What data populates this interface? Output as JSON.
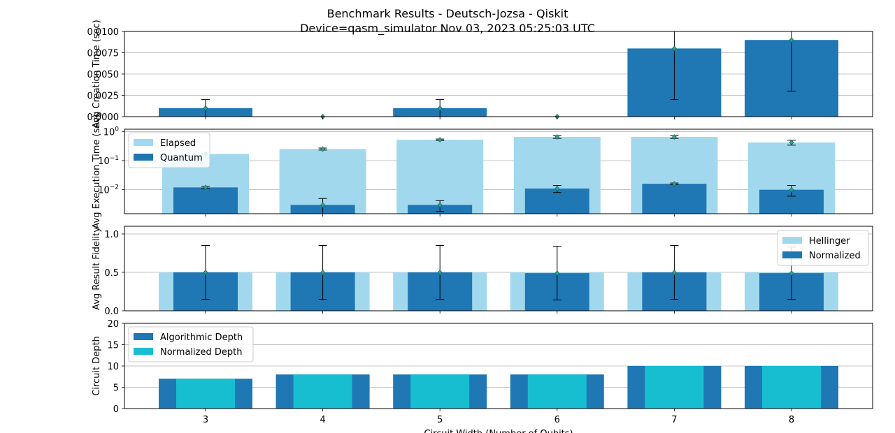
{
  "title": "Benchmark Results - Deutsch-Jozsa - Qiskit",
  "subtitle": "Device=qasm_simulator  Nov 03, 2023 05:25:03 UTC",
  "xlabel": "Circuit Width (Number of Qubits)",
  "chart_data": [
    {
      "type": "bar",
      "ylabel": "Avg Creation Time (sec)",
      "categories": [
        "3",
        "4",
        "5",
        "6",
        "7",
        "8"
      ],
      "x": [
        3,
        4,
        5,
        6,
        7,
        8
      ],
      "ylim": [
        0,
        0.01
      ],
      "yscale": "linear",
      "yticks": [
        "0.0000",
        "0.0025",
        "0.0050",
        "0.0075",
        "0.0100"
      ],
      "grid": true,
      "colors": {
        "bar": "#1f77b4",
        "marker": "#2ca58d"
      },
      "series": [
        {
          "values": [
            0.001,
            0.0,
            0.001,
            0.0,
            0.008,
            0.009
          ],
          "errors": [
            0.001,
            0.0,
            0.001,
            0.0,
            0.006,
            0.006
          ]
        }
      ]
    },
    {
      "type": "bar",
      "ylabel": "Avg Execution Time (sec)",
      "categories": [
        "3",
        "4",
        "5",
        "6",
        "7",
        "8"
      ],
      "x": [
        3,
        4,
        5,
        6,
        7,
        8
      ],
      "yscale": "log",
      "ylim": [
        0.0015,
        1.2
      ],
      "yticks": [
        "10^-2",
        "10^-1",
        "10^0"
      ],
      "grid": true,
      "legend": "top-left",
      "colors": {
        "elapsed": "#a1d8ee",
        "quantum": "#1f77b4",
        "marker": "#2ca58d"
      },
      "series": [
        {
          "name": "Elapsed",
          "values": [
            0.17,
            0.25,
            0.52,
            0.65,
            0.65,
            0.42
          ],
          "errors": [
            0.0,
            0.02,
            0.03,
            0.07,
            0.07,
            0.08
          ]
        },
        {
          "name": "Quantum",
          "values": [
            0.012,
            0.003,
            0.003,
            0.011,
            0.016,
            0.01
          ],
          "errors": [
            0.001,
            0.002,
            0.0012,
            0.003,
            0.001,
            0.004
          ]
        }
      ]
    },
    {
      "type": "bar",
      "ylabel": "Avg Result Fidelity",
      "categories": [
        "3",
        "4",
        "5",
        "6",
        "7",
        "8"
      ],
      "x": [
        3,
        4,
        5,
        6,
        7,
        8
      ],
      "ylim": [
        0,
        1.1
      ],
      "yticks": [
        "0.0",
        "0.5",
        "1.0"
      ],
      "grid": true,
      "legend": "top-right",
      "colors": {
        "hellinger": "#a1d8ee",
        "normalized": "#1f77b4",
        "marker": "#2ca58d"
      },
      "series": [
        {
          "name": "Hellinger",
          "values": [
            0.5,
            0.5,
            0.5,
            0.5,
            0.5,
            0.5
          ]
        },
        {
          "name": "Normalized",
          "values": [
            0.5,
            0.5,
            0.5,
            0.49,
            0.5,
            0.49
          ],
          "errors": [
            0.35,
            0.35,
            0.35,
            0.35,
            0.35,
            0.34
          ]
        }
      ]
    },
    {
      "type": "bar",
      "ylabel": "Circuit Depth",
      "categories": [
        "3",
        "4",
        "5",
        "6",
        "7",
        "8"
      ],
      "x": [
        3,
        4,
        5,
        6,
        7,
        8
      ],
      "ylim": [
        0,
        20
      ],
      "yticks": [
        "0",
        "5",
        "10",
        "15",
        "20"
      ],
      "grid": true,
      "legend": "top-left",
      "colors": {
        "algorithmic": "#1f77b4",
        "normalized": "#17becf"
      },
      "series": [
        {
          "name": "Algorithmic Depth",
          "values": [
            7,
            8,
            8,
            8,
            10,
            10
          ]
        },
        {
          "name": "Normalized Depth",
          "values": [
            7,
            8,
            8,
            8,
            10,
            10
          ]
        }
      ]
    }
  ]
}
